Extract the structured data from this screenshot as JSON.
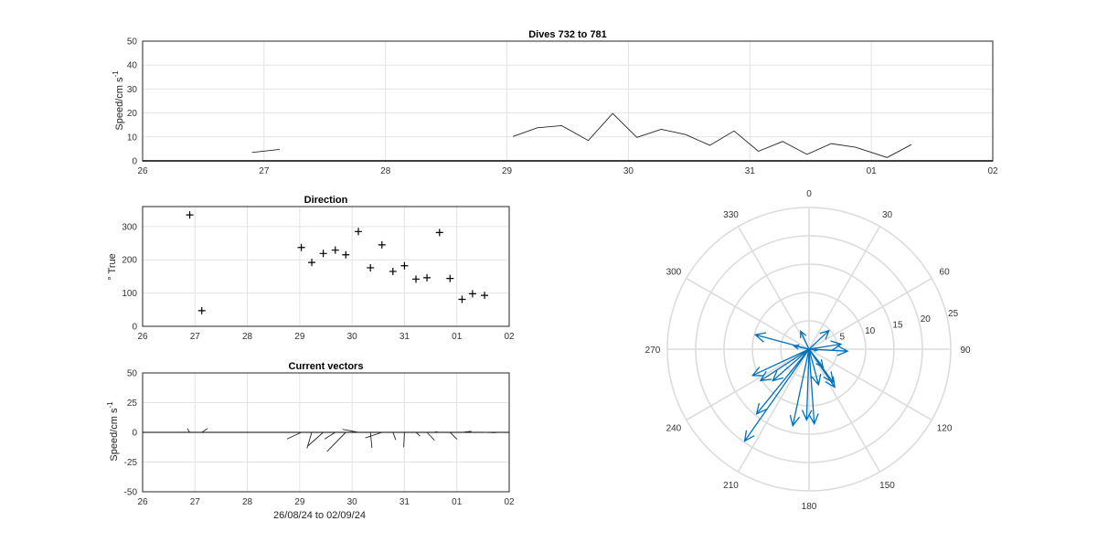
{
  "chart_data": [
    {
      "type": "line",
      "title": "Dives 732 to 781",
      "ylabel": "Speed/cm s",
      "ylabel_sup": "-1",
      "xlabel": "",
      "xlim": [
        "26",
        "02"
      ],
      "ylim": [
        0,
        50
      ],
      "x_ticks": [
        "26",
        "27",
        "28",
        "29",
        "30",
        "31",
        "01",
        "02"
      ],
      "y_ticks": [
        0,
        10,
        20,
        30,
        40,
        50
      ],
      "grid": true,
      "series": [
        {
          "x": [
            26.9,
            27.13
          ],
          "y": [
            3.5,
            4.8
          ]
        },
        {
          "x": [
            29.05,
            29.25,
            29.45,
            29.67,
            29.87,
            30.07,
            30.27,
            30.47,
            30.67,
            30.87,
            31.07,
            31.27,
            31.47,
            31.67,
            31.87,
            32.13,
            32.33
          ],
          "y": [
            10.2,
            13.8,
            14.7,
            8.5,
            19.8,
            9.8,
            13.2,
            11.0,
            6.5,
            12.5,
            4.0,
            8.1,
            2.7,
            7.2,
            5.7,
            1.4,
            6.8
          ]
        }
      ]
    },
    {
      "type": "scatter",
      "title": "Direction",
      "ylabel": "° True",
      "xlabel": "",
      "xlim": [
        "26",
        "02"
      ],
      "ylim": [
        0,
        360
      ],
      "x_ticks": [
        "26",
        "27",
        "28",
        "29",
        "30",
        "31",
        "01",
        "02"
      ],
      "y_ticks": [
        0,
        100,
        200,
        300
      ],
      "grid": true,
      "marker": "+",
      "points": [
        [
          26.9,
          335
        ],
        [
          27.13,
          47
        ],
        [
          29.03,
          237
        ],
        [
          29.23,
          192
        ],
        [
          29.45,
          219
        ],
        [
          29.68,
          229
        ],
        [
          29.88,
          215
        ],
        [
          30.12,
          285
        ],
        [
          30.35,
          176
        ],
        [
          30.57,
          245
        ],
        [
          30.78,
          165
        ],
        [
          31.0,
          182
        ],
        [
          31.22,
          142
        ],
        [
          31.43,
          146
        ],
        [
          31.67,
          282
        ],
        [
          31.87,
          144
        ],
        [
          32.1,
          81
        ],
        [
          32.3,
          98
        ],
        [
          32.53,
          93
        ]
      ]
    },
    {
      "type": "vector",
      "title": "Current vectors",
      "ylabel": "Speed/cm s",
      "ylabel_sup": "-1",
      "xlabel": "26/08/24 to 02/09/24",
      "xlim": [
        "26",
        "02"
      ],
      "ylim": [
        -50,
        50
      ],
      "x_ticks": [
        "26",
        "27",
        "28",
        "29",
        "30",
        "31",
        "01",
        "02"
      ],
      "y_ticks": [
        -50,
        -25,
        0,
        25,
        50
      ],
      "grid": true,
      "vectors": [
        {
          "x": 26.9,
          "dir": 335,
          "speed": 3.5
        },
        {
          "x": 27.13,
          "dir": 47,
          "speed": 4.8
        },
        {
          "x": 29.03,
          "dir": 237,
          "speed": 10.2
        },
        {
          "x": 29.23,
          "dir": 192,
          "speed": 13.8
        },
        {
          "x": 29.45,
          "dir": 219,
          "speed": 14.7
        },
        {
          "x": 29.68,
          "dir": 229,
          "speed": 8.5
        },
        {
          "x": 29.88,
          "dir": 215,
          "speed": 19.8
        },
        {
          "x": 30.12,
          "dir": 285,
          "speed": 9.8
        },
        {
          "x": 30.35,
          "dir": 176,
          "speed": 13.2
        },
        {
          "x": 30.57,
          "dir": 245,
          "speed": 11.0
        },
        {
          "x": 30.78,
          "dir": 165,
          "speed": 6.5
        },
        {
          "x": 31.0,
          "dir": 182,
          "speed": 12.5
        },
        {
          "x": 31.22,
          "dir": 142,
          "speed": 4.0
        },
        {
          "x": 31.43,
          "dir": 146,
          "speed": 8.1
        },
        {
          "x": 31.67,
          "dir": 282,
          "speed": 2.7
        },
        {
          "x": 31.87,
          "dir": 144,
          "speed": 7.2
        },
        {
          "x": 32.1,
          "dir": 81,
          "speed": 5.7
        },
        {
          "x": 32.3,
          "dir": 98,
          "speed": 1.4
        },
        {
          "x": 32.53,
          "dir": 93,
          "speed": 6.8
        }
      ]
    },
    {
      "type": "polar",
      "title": "",
      "angle_ticks": [
        "0",
        "30",
        "60",
        "90",
        "120",
        "150",
        "180",
        "210",
        "240",
        "270",
        "300",
        "330"
      ],
      "radial_ticks": [
        5,
        10,
        15,
        20,
        25
      ],
      "rmax": 25,
      "arrow_color": "#0072BD",
      "arrows": [
        {
          "dir": 335,
          "speed": 3.5
        },
        {
          "dir": 47,
          "speed": 4.8
        },
        {
          "dir": 237,
          "speed": 10.2
        },
        {
          "dir": 192,
          "speed": 13.8
        },
        {
          "dir": 219,
          "speed": 14.7
        },
        {
          "dir": 229,
          "speed": 8.5
        },
        {
          "dir": 215,
          "speed": 19.8
        },
        {
          "dir": 285,
          "speed": 9.8
        },
        {
          "dir": 176,
          "speed": 13.2
        },
        {
          "dir": 245,
          "speed": 11.0
        },
        {
          "dir": 165,
          "speed": 6.5
        },
        {
          "dir": 182,
          "speed": 12.5
        },
        {
          "dir": 142,
          "speed": 4.0
        },
        {
          "dir": 146,
          "speed": 8.1
        },
        {
          "dir": 282,
          "speed": 2.7
        },
        {
          "dir": 144,
          "speed": 7.2
        },
        {
          "dir": 81,
          "speed": 5.7
        },
        {
          "dir": 98,
          "speed": 1.4
        },
        {
          "dir": 93,
          "speed": 6.8
        }
      ]
    }
  ]
}
